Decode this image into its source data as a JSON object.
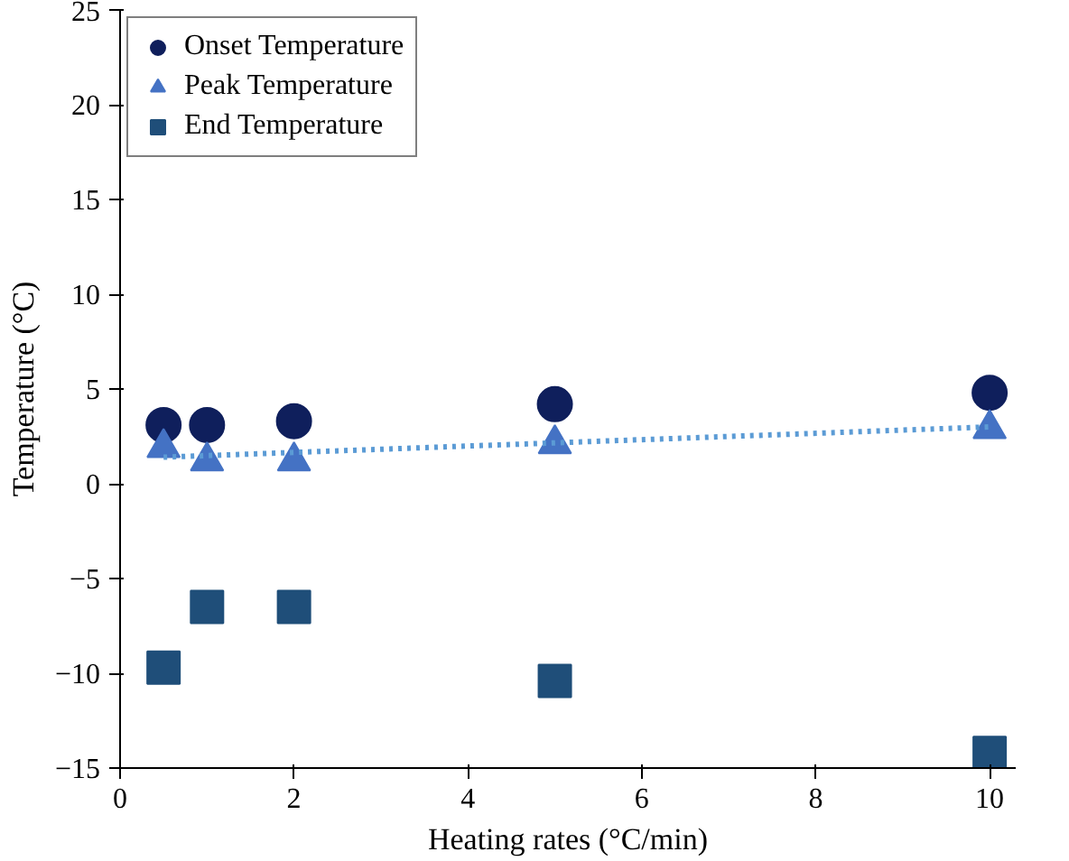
{
  "chart_data": {
    "type": "scatter",
    "xlabel": "Heating rates (°C/min)",
    "ylabel": "Temperature (°C)",
    "x": [
      0.5,
      1,
      2,
      5,
      10
    ],
    "series": [
      {
        "name": "Onset Temperature",
        "color": "#0f1f5c",
        "marker": "circle",
        "values": [
          3.1,
          3.1,
          3.3,
          4.2,
          4.8
        ]
      },
      {
        "name": "Peak Temperature",
        "color": "#4472c4",
        "marker": "triangle",
        "values": [
          1.9,
          1.2,
          1.2,
          2.1,
          2.9
        ]
      },
      {
        "name": "End Temperature",
        "color": "#1f4e79",
        "marker": "square",
        "values": [
          -9.7,
          -6.5,
          -6.5,
          -10.4,
          -14.2
        ]
      },
      {
        "type": "line",
        "color": "#5b9bd5",
        "line_style": "dotted",
        "x": [
          0.5,
          10
        ],
        "values": [
          1.4,
          3.0
        ]
      }
    ],
    "xlim": [
      0,
      10.3
    ],
    "ylim": [
      -15,
      25
    ],
    "xticks": [
      0,
      2,
      4,
      6,
      8,
      10
    ],
    "yticks": [
      -15,
      -10,
      -5,
      0,
      5,
      10,
      15,
      20,
      25
    ],
    "grid": false,
    "legend": "top left"
  }
}
